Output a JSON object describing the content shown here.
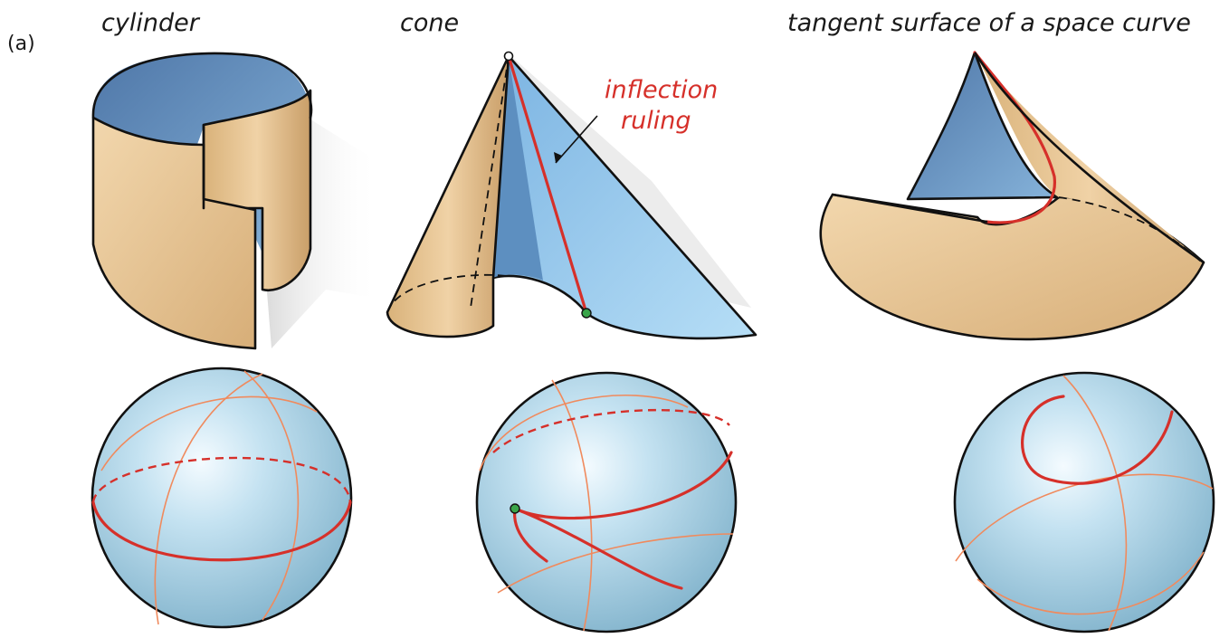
{
  "panel_label": "(a)",
  "columns": [
    {
      "title": "cylinder"
    },
    {
      "title": "cone"
    },
    {
      "title": "tangent surface of a space curve"
    }
  ],
  "annotation": {
    "line1": "inflection",
    "line2": "ruling"
  },
  "colors": {
    "tan": "#e6c291",
    "blue_in": "#6d97c2",
    "blue_out": "#9fcff0",
    "sphere": "#b5d8ea",
    "red": "#d6302a",
    "orange_thin": "#f08a5d",
    "green_point": "#3aa54a"
  }
}
